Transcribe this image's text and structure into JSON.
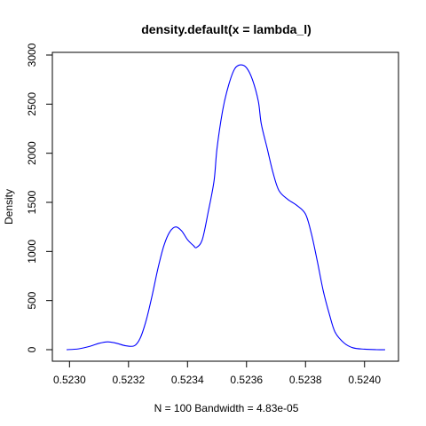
{
  "chart_data": {
    "type": "line",
    "title": "density.default(x = lambda_l)",
    "xlabel": "N = 100   Bandwidth = 4.83e-05",
    "ylabel": "Density",
    "xlim": [
      0.52299,
      0.52407
    ],
    "ylim": [
      0,
      3000
    ],
    "x_ticks": [
      0.523,
      0.5232,
      0.5234,
      0.5236,
      0.5238,
      0.524
    ],
    "x_tick_labels": [
      "0.5230",
      "0.5232",
      "0.5234",
      "0.5236",
      "0.5238",
      "0.5240"
    ],
    "y_ticks": [
      0,
      500,
      1000,
      1500,
      2000,
      2500,
      3000
    ],
    "y_tick_labels": [
      "0",
      "500",
      "1000",
      "1500",
      "2000",
      "2500",
      "3000"
    ],
    "grid": false,
    "colors": {
      "series": "#0000ff",
      "axes": "#000000"
    },
    "series": [
      {
        "x": [
          0.52299,
          0.52303,
          0.52307,
          0.5231,
          0.52313,
          0.52316,
          0.52319,
          0.52322,
          0.52324,
          0.52326,
          0.52328,
          0.5233,
          0.52332,
          0.52334,
          0.52336,
          0.52338,
          0.5234,
          0.52342,
          0.52343,
          0.52345,
          0.52347,
          0.52349,
          0.5235,
          0.52352,
          0.52354,
          0.52356,
          0.52358,
          0.5236,
          0.52362,
          0.52364,
          0.52365,
          0.52367,
          0.52369,
          0.52371,
          0.52374,
          0.52377,
          0.5238,
          0.52382,
          0.52384,
          0.52386,
          0.52388,
          0.5239,
          0.52393,
          0.52396,
          0.524,
          0.52404,
          0.52407
        ],
        "y": [
          0,
          8,
          35,
          65,
          80,
          65,
          40,
          40,
          120,
          300,
          550,
          830,
          1060,
          1200,
          1250,
          1210,
          1120,
          1060,
          1040,
          1120,
          1400,
          1720,
          2050,
          2450,
          2700,
          2860,
          2900,
          2870,
          2750,
          2530,
          2300,
          2050,
          1800,
          1620,
          1530,
          1470,
          1380,
          1180,
          900,
          600,
          370,
          180,
          70,
          20,
          5,
          0,
          0
        ]
      }
    ]
  }
}
